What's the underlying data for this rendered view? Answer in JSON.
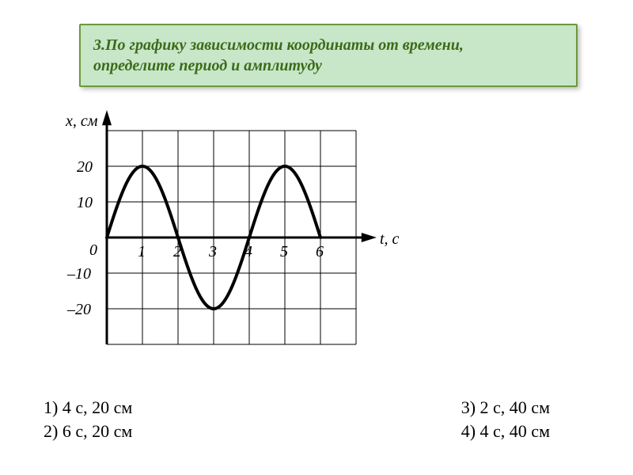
{
  "question": {
    "text_line1": "3.По графику зависимости координаты от времени,",
    "text_line2": " определите   период и амплитуду",
    "bg_color": "#c8e6c8",
    "border_color": "#6a9a3a",
    "text_color": "#3b6b1a",
    "title_fontsize": 20
  },
  "chart": {
    "type": "line",
    "y_axis_label": "x, см",
    "x_axis_label": "t, с",
    "x_ticks": [
      1,
      2,
      3,
      4,
      5,
      6
    ],
    "y_ticks_pos": [
      10,
      20
    ],
    "y_ticks_neg": [
      -10,
      -20
    ],
    "y_tick_labels_pos": [
      "10",
      "20"
    ],
    "y_tick_labels_neg": [
      "–10",
      "–20"
    ],
    "origin_label": "0",
    "xlim": [
      0,
      7
    ],
    "ylim": [
      -30,
      30
    ],
    "amplitude": 20,
    "period": 4,
    "curve_color": "#000000",
    "curve_width": 4,
    "grid_color": "#000000",
    "grid_width": 1,
    "background_color": "#ffffff",
    "label_fontsize": 20,
    "tick_fontsize": 20,
    "axis_arrow_size": 12
  },
  "answers": {
    "opt1": "1)  4  с,  20  см",
    "opt2": "2)  6  с,  20  см",
    "opt3": "3)  2  с,  40  см",
    "opt4": "4)  4  с,  40  см",
    "fontsize": 22,
    "text_color": "#000000"
  }
}
